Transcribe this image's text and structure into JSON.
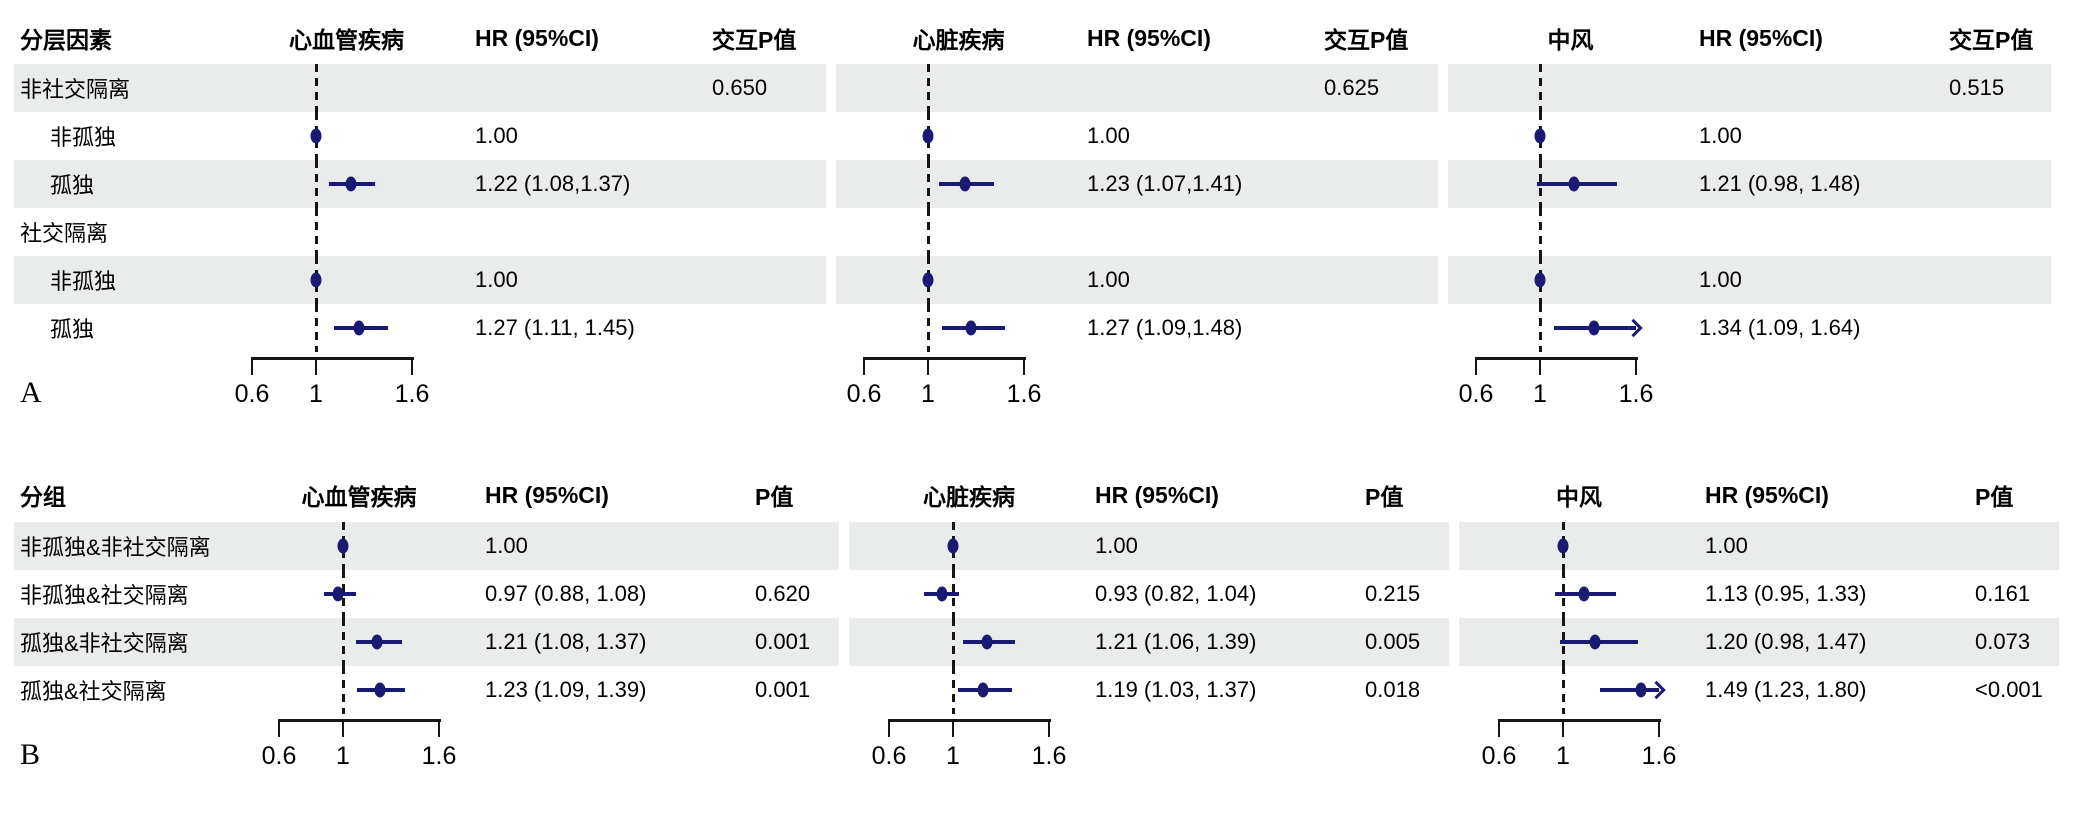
{
  "colors": {
    "marker": "#1a1a73",
    "stripe": "#e9eceb",
    "axis": "#161616",
    "background": "#ffffff"
  },
  "chart_data": [
    {
      "type": "scatter",
      "subtype": "forest",
      "panel_label": "A",
      "row_label_header": "分层因素",
      "groups": [
        {
          "outcome": "心血管疾病",
          "hr_header": "HR (95%CI)",
          "p_header": "交互P值"
        },
        {
          "outcome": "心脏疾病",
          "hr_header": "HR (95%CI)",
          "p_header": "交互P值"
        },
        {
          "outcome": "中风",
          "hr_header": "HR (95%CI)",
          "p_header": "交互P值"
        }
      ],
      "x_axis": {
        "scale": "linear",
        "range": [
          0.6,
          1.6
        ],
        "tick_values": [
          0.6,
          1,
          1.6
        ],
        "tick_labels": [
          "0.6",
          "1",
          "1.6"
        ],
        "reference_line": 1,
        "clip_arrow_above": 1.6
      },
      "rows": [
        {
          "label": "非社交隔离",
          "indent": false,
          "cells": [
            {
              "p": "0.650"
            },
            {
              "p": "0.625"
            },
            {
              "p": "0.515"
            }
          ]
        },
        {
          "label": "非孤独",
          "indent": true,
          "cells": [
            {
              "hr_text": "1.00",
              "est": 1.0
            },
            {
              "hr_text": "1.00",
              "est": 1.0
            },
            {
              "hr_text": "1.00",
              "est": 1.0
            }
          ]
        },
        {
          "label": "孤独",
          "indent": true,
          "cells": [
            {
              "hr_text": "1.22 (1.08,1.37)",
              "est": 1.22,
              "lo": 1.08,
              "hi": 1.37
            },
            {
              "hr_text": "1.23 (1.07,1.41)",
              "est": 1.23,
              "lo": 1.07,
              "hi": 1.41
            },
            {
              "hr_text": "1.21 (0.98, 1.48)",
              "est": 1.21,
              "lo": 0.98,
              "hi": 1.48
            }
          ]
        },
        {
          "label": "社交隔离",
          "indent": false,
          "cells": [
            {},
            {},
            {}
          ]
        },
        {
          "label": "非孤独",
          "indent": true,
          "cells": [
            {
              "hr_text": "1.00",
              "est": 1.0
            },
            {
              "hr_text": "1.00",
              "est": 1.0
            },
            {
              "hr_text": "1.00",
              "est": 1.0
            }
          ]
        },
        {
          "label": "孤独",
          "indent": true,
          "cells": [
            {
              "hr_text": "1.27 (1.11, 1.45)",
              "est": 1.27,
              "lo": 1.11,
              "hi": 1.45
            },
            {
              "hr_text": "1.27 (1.09,1.48)",
              "est": 1.27,
              "lo": 1.09,
              "hi": 1.48
            },
            {
              "hr_text": "1.34 (1.09, 1.64)",
              "est": 1.34,
              "lo": 1.09,
              "hi": 1.64
            }
          ]
        }
      ]
    },
    {
      "type": "scatter",
      "subtype": "forest",
      "panel_label": "B",
      "row_label_header": "分组",
      "groups": [
        {
          "outcome": "心血管疾病",
          "hr_header": "HR (95%CI)",
          "p_header": "P值"
        },
        {
          "outcome": "心脏疾病",
          "hr_header": "HR (95%CI)",
          "p_header": "P值"
        },
        {
          "outcome": "中风",
          "hr_header": "HR (95%CI)",
          "p_header": "P值"
        }
      ],
      "x_axis": {
        "scale": "linear",
        "range": [
          0.6,
          1.6
        ],
        "tick_values": [
          0.6,
          1,
          1.6
        ],
        "tick_labels": [
          "0.6",
          "1",
          "1.6"
        ],
        "reference_line": 1,
        "clip_arrow_above": 1.6
      },
      "rows": [
        {
          "label": "非孤独&非社交隔离",
          "indent": false,
          "cells": [
            {
              "hr_text": "1.00",
              "est": 1.0
            },
            {
              "hr_text": "1.00",
              "est": 1.0
            },
            {
              "hr_text": "1.00",
              "est": 1.0
            }
          ]
        },
        {
          "label": "非孤独&社交隔离",
          "indent": false,
          "cells": [
            {
              "hr_text": "0.97 (0.88, 1.08)",
              "p": "0.620",
              "est": 0.97,
              "lo": 0.88,
              "hi": 1.08
            },
            {
              "hr_text": "0.93 (0.82, 1.04)",
              "p": "0.215",
              "est": 0.93,
              "lo": 0.82,
              "hi": 1.04
            },
            {
              "hr_text": "1.13 (0.95, 1.33)",
              "p": "0.161",
              "est": 1.13,
              "lo": 0.95,
              "hi": 1.33
            }
          ]
        },
        {
          "label": "孤独&非社交隔离",
          "indent": false,
          "cells": [
            {
              "hr_text": "1.21 (1.08, 1.37)",
              "p": "0.001",
              "est": 1.21,
              "lo": 1.08,
              "hi": 1.37
            },
            {
              "hr_text": "1.21 (1.06, 1.39)",
              "p": "0.005",
              "est": 1.21,
              "lo": 1.06,
              "hi": 1.39
            },
            {
              "hr_text": "1.20 (0.98, 1.47)",
              "p": "0.073",
              "est": 1.2,
              "lo": 0.98,
              "hi": 1.47
            }
          ]
        },
        {
          "label": "孤独&社交隔离",
          "indent": false,
          "cells": [
            {
              "hr_text": "1.23 (1.09, 1.39)",
              "p": "0.001",
              "est": 1.23,
              "lo": 1.09,
              "hi": 1.39
            },
            {
              "hr_text": "1.19 (1.03, 1.37)",
              "p": "0.018",
              "est": 1.19,
              "lo": 1.03,
              "hi": 1.37
            },
            {
              "hr_text": "1.49 (1.23, 1.80)",
              "p": "<0.001",
              "est": 1.49,
              "lo": 1.23,
              "hi": 1.8
            }
          ]
        }
      ]
    }
  ]
}
